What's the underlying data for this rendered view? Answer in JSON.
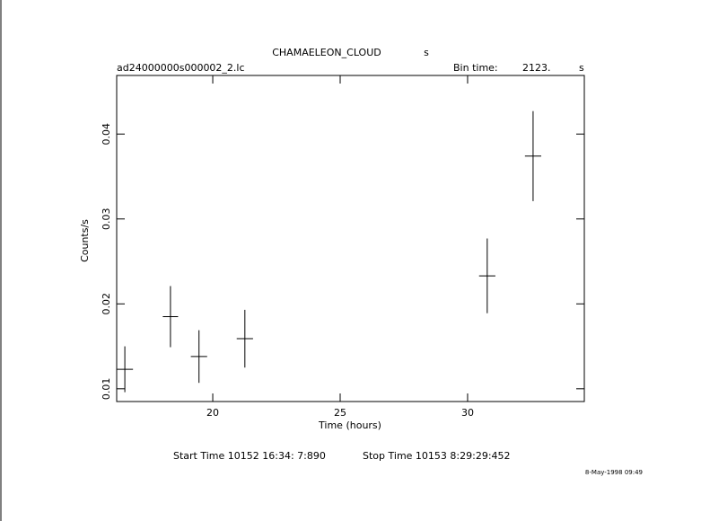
{
  "chart_data": {
    "type": "errorbar",
    "title": "CHAMAELEON_CLOUD",
    "title_unit": "s",
    "file_name": "ad24000000s000002_2.lc",
    "bin_time_label": "Bin time:",
    "bin_time": "2123.",
    "bin_time_unit": "s",
    "xlabel": "Time (hours)",
    "ylabel": "Counts/s",
    "start_time": "Start Time 10152 16:34: 7:890",
    "stop_time": "Stop Time 10153  8:29:29:452",
    "date": "8-May-1998 09:49",
    "xlim": [
      16.23,
      34.58
    ],
    "xticks": [
      20,
      25,
      30
    ],
    "ylim": [
      0.0085,
      0.0469
    ],
    "yticks": [
      0.01,
      0.02,
      0.03,
      0.04
    ],
    "color": "#000000",
    "x": [
      16.55,
      18.34,
      19.46,
      21.26,
      30.77,
      32.57
    ],
    "xerr": [
      0.32,
      0.3,
      0.32,
      0.32,
      0.32,
      0.32
    ],
    "values": [
      0.0123,
      0.0185,
      0.0138,
      0.0159,
      0.0233,
      0.0374
    ],
    "yerr": [
      0.0027,
      0.0036,
      0.0031,
      0.0034,
      0.0044,
      0.0053
    ]
  }
}
